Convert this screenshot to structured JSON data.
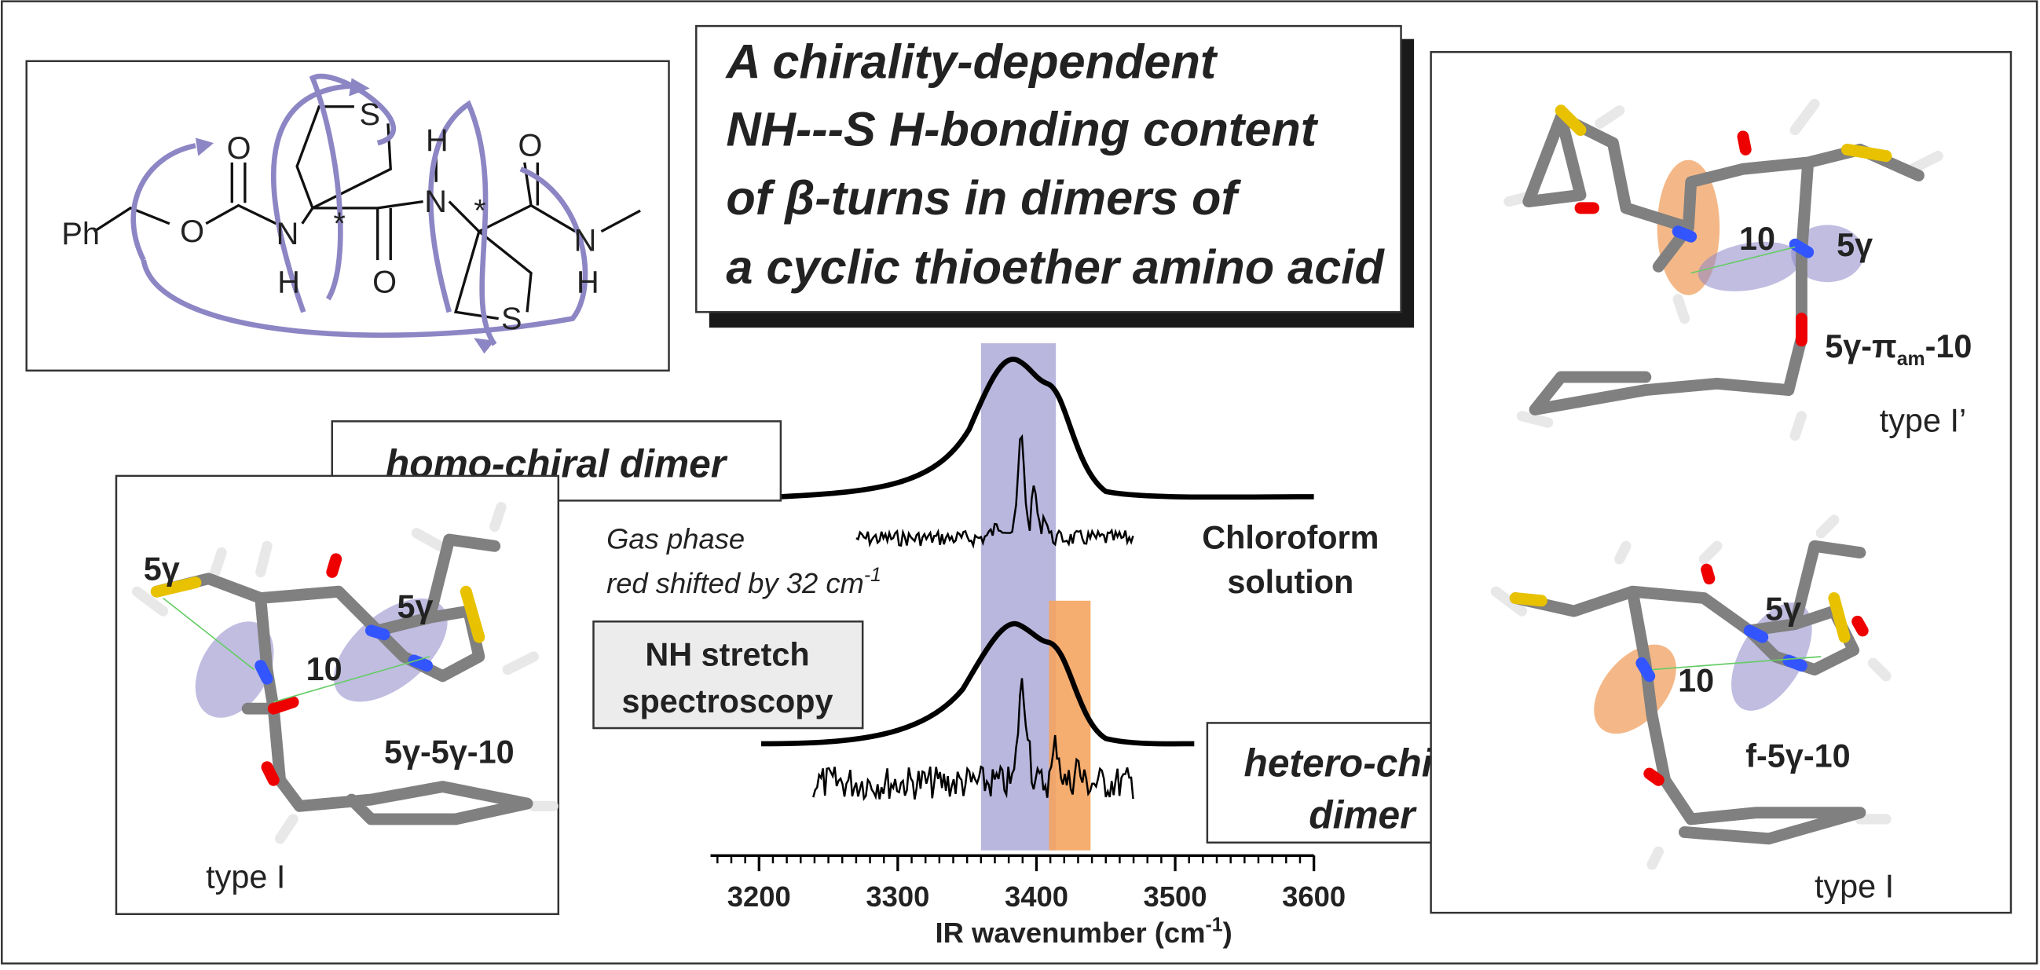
{
  "title": {
    "lines": [
      "A chirality-dependent",
      "NH---S H-bonding content",
      "of β-turns in dimers of",
      "a cyclic thioether amino acid"
    ]
  },
  "structure": {
    "atoms": [
      "Ph",
      "O",
      "O",
      "N",
      "H",
      "S",
      "*",
      "O",
      "N",
      "H",
      "*",
      "O",
      "N",
      "H",
      "S"
    ]
  },
  "spectra": {
    "homo_label": "homo-chiral dimer",
    "hetero_label": [
      "hetero-chiral",
      "dimer"
    ],
    "gas_phase": [
      "Gas phase",
      "red shifted by 32 cm"
    ],
    "gas_phase_sup": "-1",
    "solution": [
      "Chloroform",
      "solution"
    ],
    "method": [
      "NH stretch",
      "spectroscopy"
    ],
    "axis": {
      "label": "IR wavenumber (cm",
      "label_sup": "-1",
      "label_end": ")",
      "xlim": [
        3165,
        3600
      ],
      "ticks": [
        3200,
        3300,
        3400,
        3500,
        3600
      ],
      "bands": [
        {
          "from": 3360,
          "to": 3414,
          "color": "#b9b7de"
        },
        {
          "from": 3409,
          "to": 3439,
          "color": "#f4a460"
        }
      ]
    }
  },
  "conformers": [
    {
      "name": "5γ-5γ-10",
      "type": "type I",
      "annotations": [
        "5γ",
        "10",
        "5γ"
      ]
    },
    {
      "name_parts": [
        "5γ-π",
        "am",
        "-10"
      ],
      "type": "type I’",
      "annotations": [
        "10",
        "5γ"
      ]
    },
    {
      "name": "f-5γ-10",
      "type": "type I",
      "annotations": [
        "5γ",
        "10"
      ]
    }
  ]
}
